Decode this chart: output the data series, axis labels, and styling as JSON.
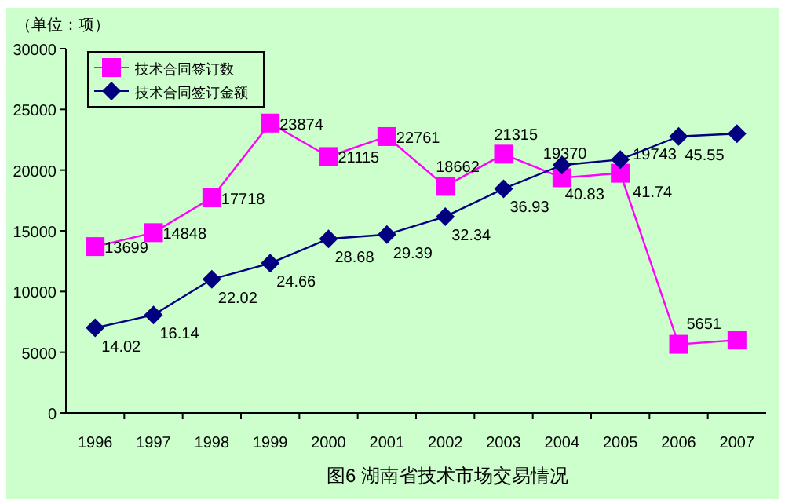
{
  "chart_data": {
    "type": "line",
    "title": "图6  湖南省技术市场交易情况",
    "ylabel": "（单位：项）",
    "categories": [
      "1996",
      "1997",
      "1998",
      "1999",
      "2000",
      "2001",
      "2002",
      "2003",
      "2004",
      "2005",
      "2006",
      "2007"
    ],
    "ylim": [
      0,
      30000
    ],
    "yticks": [
      0,
      5000,
      10000,
      15000,
      20000,
      25000,
      30000
    ],
    "y2lim": [
      0,
      60
    ],
    "tick_labels": [
      "x",
      "y"
    ],
    "grid": false,
    "legend": "top left",
    "series": [
      {
        "name": "技术合同签订数",
        "color": "#ff00ff",
        "marker": "square",
        "values": [
          13699,
          14848,
          17718,
          23874,
          21115,
          22761,
          18662,
          21315,
          19370,
          19743,
          5651,
          6000
        ],
        "value_labels": [
          "13699",
          "14848",
          "17718",
          "23874",
          "21115",
          "22761",
          "18662",
          "21315",
          "19370",
          "19743",
          "5651",
          null
        ]
      },
      {
        "name": "技术合同签订金额",
        "color": "#000080",
        "marker": "diamond",
        "axis": "y2",
        "values": [
          14.02,
          16.14,
          22.02,
          24.66,
          28.68,
          29.39,
          32.34,
          36.93,
          40.83,
          41.74,
          45.55,
          46
        ],
        "value_labels": [
          "14.02",
          "16.14",
          "22.02",
          "24.66",
          "28.68",
          "29.39",
          "32.34",
          "36.93",
          "40.83",
          "41.74",
          "45.55",
          null
        ]
      }
    ]
  }
}
